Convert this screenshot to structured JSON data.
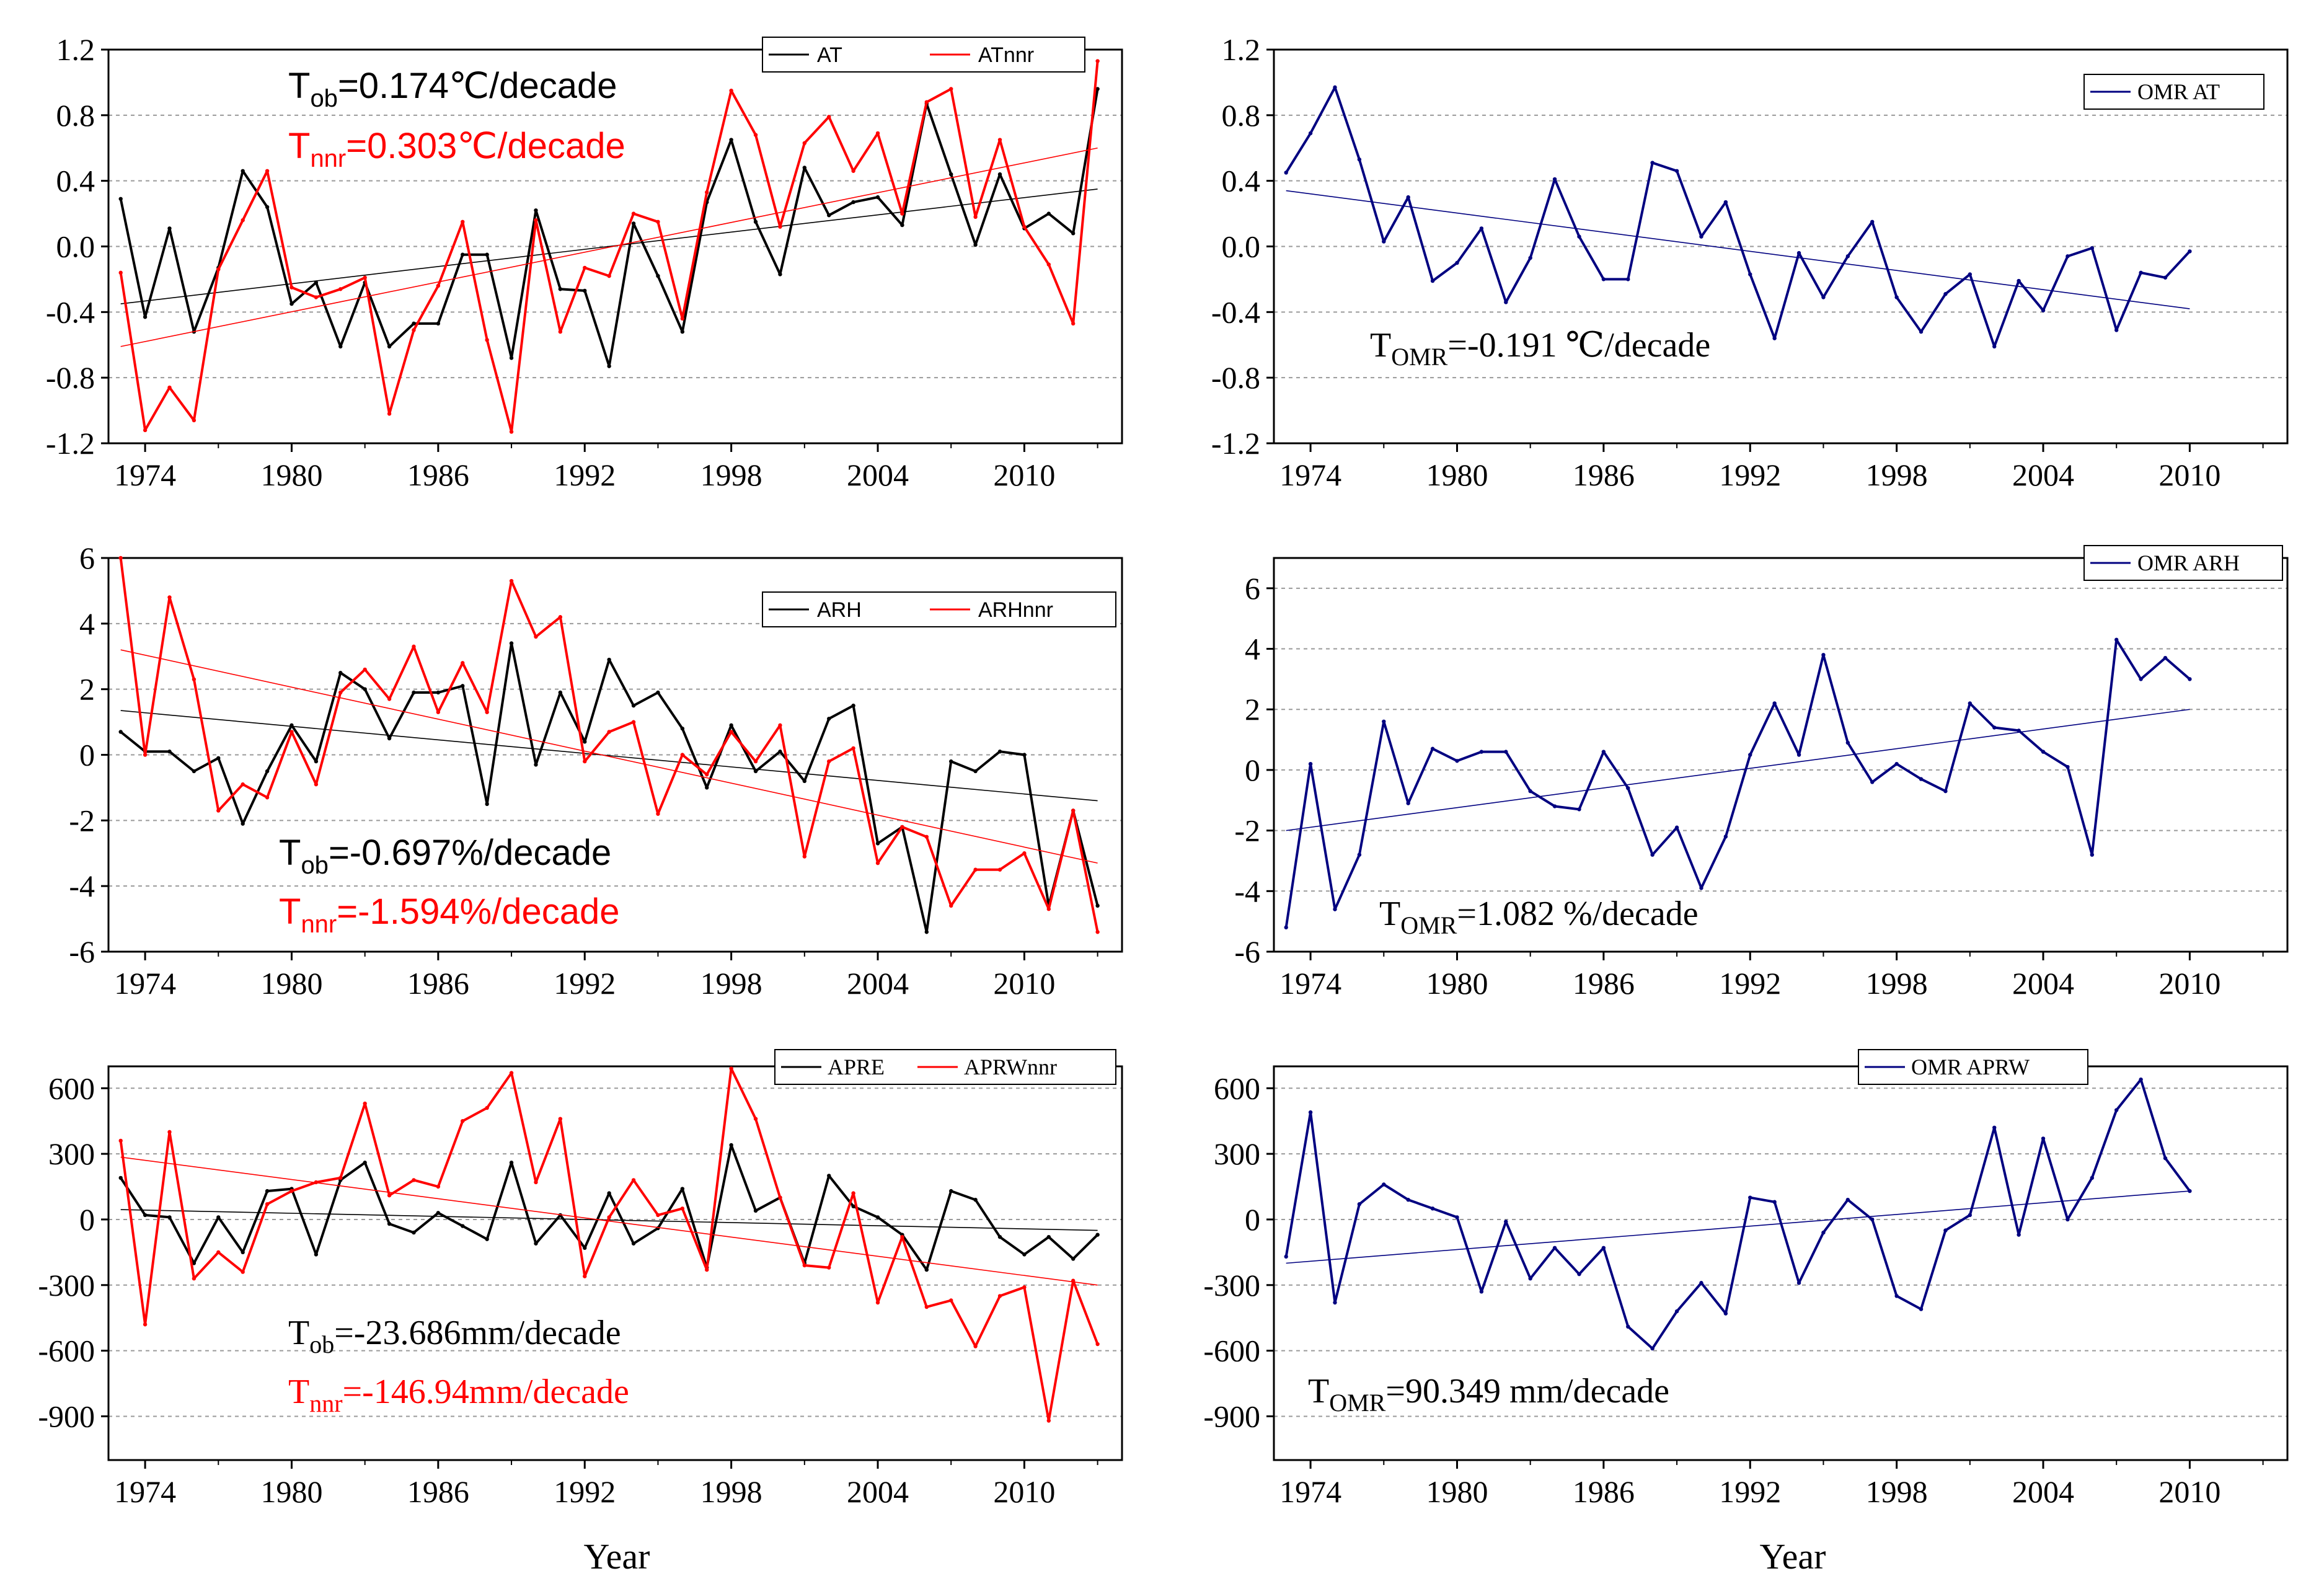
{
  "colors": {
    "ob": "#000000",
    "nnr": "#ff0000",
    "omr": "#000080",
    "grid": "#9a9a9a"
  },
  "x_label": "Year",
  "chart_data": [
    {
      "id": "at",
      "type": "line",
      "x": [
        1973,
        1974,
        1975,
        1976,
        1977,
        1978,
        1979,
        1980,
        1981,
        1982,
        1983,
        1984,
        1985,
        1986,
        1987,
        1988,
        1989,
        1990,
        1991,
        1992,
        1993,
        1994,
        1995,
        1996,
        1997,
        1998,
        1999,
        2000,
        2001,
        2002,
        2003,
        2004,
        2005,
        2006,
        2007,
        2008,
        2009,
        2010,
        2011,
        2012,
        2013
      ],
      "xticks": [
        "1974",
        "1980",
        "1986",
        "1992",
        "1998",
        "2004",
        "2010"
      ],
      "xlim": [
        1972.5,
        2014
      ],
      "yticks": [
        "-1.2",
        "-0.8",
        "-0.4",
        "0.0",
        "0.4",
        "0.8",
        "1.2"
      ],
      "ylim": [
        -1.2,
        1.2
      ],
      "series": [
        {
          "name": "AT",
          "color": "#000000",
          "values": [
            0.29,
            -0.43,
            0.11,
            -0.52,
            -0.13,
            0.46,
            0.24,
            -0.35,
            -0.22,
            -0.61,
            -0.22,
            -0.61,
            -0.47,
            -0.47,
            -0.05,
            -0.05,
            -0.68,
            0.22,
            -0.26,
            -0.27,
            -0.73,
            0.14,
            -0.18,
            -0.52,
            0.27,
            0.65,
            0.15,
            -0.17,
            0.48,
            0.19,
            0.27,
            0.3,
            0.13,
            0.87,
            0.44,
            0.01,
            0.44,
            0.11,
            0.2,
            0.08,
            0.96
          ],
          "trend": [
            -0.35,
            0.35
          ]
        },
        {
          "name": "ATnnr",
          "color": "#ff0000",
          "values": [
            -0.16,
            -1.12,
            -0.86,
            -1.06,
            -0.14,
            0.16,
            0.46,
            -0.25,
            -0.31,
            -0.26,
            -0.19,
            -1.02,
            -0.51,
            -0.24,
            0.15,
            -0.57,
            -1.13,
            0.16,
            -0.52,
            -0.13,
            -0.18,
            0.2,
            0.15,
            -0.44,
            0.33,
            0.95,
            0.68,
            0.12,
            0.63,
            0.79,
            0.46,
            0.69,
            0.2,
            0.88,
            0.96,
            0.18,
            0.65,
            0.12,
            -0.11,
            -0.47,
            1.13
          ],
          "trend": [
            -0.61,
            0.6
          ]
        }
      ],
      "annotations": [
        {
          "main": "T",
          "sub": "ob",
          "rest": "=0.174℃/decade",
          "color": "#000000"
        },
        {
          "main": "T",
          "sub": "nnr",
          "rest": "=0.303℃/decade",
          "color": "#ff0000"
        }
      ]
    },
    {
      "id": "omr_at",
      "type": "line",
      "x": [
        1973,
        1974,
        1975,
        1976,
        1977,
        1978,
        1979,
        1980,
        1981,
        1982,
        1983,
        1984,
        1985,
        1986,
        1987,
        1988,
        1989,
        1990,
        1991,
        1992,
        1993,
        1994,
        1995,
        1996,
        1997,
        1998,
        1999,
        2000,
        2001,
        2002,
        2003,
        2004,
        2005,
        2006,
        2007,
        2008,
        2009,
        2010
      ],
      "xticks": [
        "1974",
        "1980",
        "1986",
        "1992",
        "1998",
        "2004",
        "2010"
      ],
      "xlim": [
        1972.5,
        2014
      ],
      "yticks": [
        "-1.2",
        "-0.8",
        "-0.4",
        "0.0",
        "0.4",
        "0.8",
        "1.2"
      ],
      "ylim": [
        -1.2,
        1.2
      ],
      "series": [
        {
          "name": "OMR AT",
          "color": "#000080",
          "values": [
            0.45,
            0.69,
            0.97,
            0.53,
            0.03,
            0.3,
            -0.21,
            -0.1,
            0.11,
            -0.34,
            -0.07,
            0.41,
            0.06,
            -0.2,
            -0.2,
            0.51,
            0.46,
            0.06,
            0.27,
            -0.17,
            -0.56,
            -0.04,
            -0.31,
            -0.06,
            0.15,
            -0.31,
            -0.52,
            -0.29,
            -0.17,
            -0.61,
            -0.21,
            -0.39,
            -0.06,
            -0.01,
            -0.51,
            -0.16,
            -0.19,
            -0.03
          ],
          "trend": [
            0.34,
            -0.38
          ]
        }
      ],
      "annotations": [
        {
          "main": "T",
          "sub": "OMR",
          "rest": "=-0.191 ℃/decade",
          "color": "#000000"
        }
      ]
    },
    {
      "id": "arh",
      "type": "line",
      "x": [
        1973,
        1974,
        1975,
        1976,
        1977,
        1978,
        1979,
        1980,
        1981,
        1982,
        1983,
        1984,
        1985,
        1986,
        1987,
        1988,
        1989,
        1990,
        1991,
        1992,
        1993,
        1994,
        1995,
        1996,
        1997,
        1998,
        1999,
        2000,
        2001,
        2002,
        2003,
        2004,
        2005,
        2006,
        2007,
        2008,
        2009,
        2010,
        2011,
        2012,
        2013
      ],
      "xticks": [
        "1974",
        "1980",
        "1986",
        "1992",
        "1998",
        "2004",
        "2010"
      ],
      "xlim": [
        1972.5,
        2014
      ],
      "yticks": [
        "-6",
        "-4",
        "-2",
        "0",
        "2",
        "4",
        "6"
      ],
      "ylim": [
        -6,
        6
      ],
      "series": [
        {
          "name": "ARH",
          "color": "#000000",
          "values": [
            0.7,
            0.1,
            0.1,
            -0.5,
            -0.1,
            -2.1,
            -0.5,
            0.9,
            -0.2,
            2.5,
            2.0,
            0.5,
            1.9,
            1.9,
            2.1,
            -1.5,
            3.4,
            -0.3,
            1.9,
            0.4,
            2.9,
            1.5,
            1.9,
            0.8,
            -1.0,
            0.9,
            -0.5,
            0.1,
            -0.8,
            1.1,
            1.5,
            -2.7,
            -2.2,
            -5.4,
            -0.2,
            -0.5,
            0.1,
            0.0,
            -4.6,
            -1.7,
            -4.6
          ],
          "trend": [
            1.35,
            -1.4
          ]
        },
        {
          "name": "ARHnnr",
          "color": "#ff0000",
          "values": [
            6.0,
            0.0,
            4.8,
            2.3,
            -1.7,
            -0.9,
            -1.3,
            0.7,
            -0.9,
            1.9,
            2.6,
            1.7,
            3.3,
            1.3,
            2.8,
            1.3,
            5.3,
            3.6,
            4.2,
            -0.2,
            0.7,
            1.0,
            -1.8,
            0.0,
            -0.6,
            0.7,
            -0.2,
            0.9,
            -3.1,
            -0.2,
            0.2,
            -3.3,
            -2.2,
            -2.5,
            -4.6,
            -3.5,
            -3.5,
            -3.0,
            -4.7,
            -1.7,
            -5.4
          ],
          "trend": [
            3.2,
            -3.3
          ]
        }
      ],
      "annotations": [
        {
          "main": "T",
          "sub": "ob",
          "rest": "=-0.697%/decade",
          "color": "#000000"
        },
        {
          "main": "T",
          "sub": "nnr",
          "rest": "=-1.594%/decade",
          "color": "#ff0000"
        }
      ]
    },
    {
      "id": "omr_arh",
      "type": "line",
      "x": [
        1973,
        1974,
        1975,
        1976,
        1977,
        1978,
        1979,
        1980,
        1981,
        1982,
        1983,
        1984,
        1985,
        1986,
        1987,
        1988,
        1989,
        1990,
        1991,
        1992,
        1993,
        1994,
        1995,
        1996,
        1997,
        1998,
        1999,
        2000,
        2001,
        2002,
        2003,
        2004,
        2005,
        2006,
        2007,
        2008,
        2009,
        2010
      ],
      "xticks": [
        "1974",
        "1980",
        "1986",
        "1992",
        "1998",
        "2004",
        "2010"
      ],
      "xlim": [
        1972.5,
        2014
      ],
      "yticks": [
        "-6",
        "-4",
        "-2",
        "0",
        "2",
        "4",
        "6"
      ],
      "ylim": [
        -6,
        7
      ],
      "series": [
        {
          "name": "OMR ARH",
          "color": "#000080",
          "values": [
            -5.2,
            0.2,
            -4.6,
            -2.8,
            1.6,
            -1.1,
            0.7,
            0.3,
            0.6,
            0.6,
            -0.7,
            -1.2,
            -1.3,
            0.6,
            -0.6,
            -2.8,
            -1.9,
            -3.9,
            -2.2,
            0.5,
            2.2,
            0.5,
            3.8,
            0.9,
            -0.4,
            0.2,
            -0.3,
            -0.7,
            2.2,
            1.4,
            1.3,
            0.6,
            0.1,
            -2.8,
            4.3,
            3.0,
            3.7,
            3.0
          ],
          "trend": [
            -2.0,
            2.0
          ]
        }
      ],
      "annotations": [
        {
          "main": "T",
          "sub": "OMR",
          "rest": "=1.082 %/decade",
          "color": "#000000"
        }
      ]
    },
    {
      "id": "apre",
      "type": "line",
      "x": [
        1973,
        1974,
        1975,
        1976,
        1977,
        1978,
        1979,
        1980,
        1981,
        1982,
        1983,
        1984,
        1985,
        1986,
        1987,
        1988,
        1989,
        1990,
        1991,
        1992,
        1993,
        1994,
        1995,
        1996,
        1997,
        1998,
        1999,
        2000,
        2001,
        2002,
        2003,
        2004,
        2005,
        2006,
        2007,
        2008,
        2009,
        2010,
        2011,
        2012,
        2013
      ],
      "xticks": [
        "1974",
        "1980",
        "1986",
        "1992",
        "1998",
        "2004",
        "2010"
      ],
      "xlim": [
        1972.5,
        2014
      ],
      "yticks": [
        "-900",
        "-600",
        "-300",
        "0",
        "300",
        "600"
      ],
      "ylim": [
        -1100,
        700
      ],
      "series": [
        {
          "name": "APRE",
          "color": "#000000",
          "values": [
            190,
            20,
            10,
            -200,
            10,
            -150,
            130,
            140,
            -160,
            180,
            260,
            -20,
            -60,
            30,
            -30,
            -90,
            260,
            -110,
            20,
            -130,
            120,
            -110,
            -40,
            140,
            -220,
            340,
            40,
            100,
            -200,
            200,
            60,
            10,
            -70,
            -230,
            130,
            90,
            -80,
            -160,
            -80,
            -180,
            -70
          ],
          "trend": [
            45,
            -50
          ]
        },
        {
          "name": "APRWnnr",
          "color": "#ff0000",
          "values": [
            360,
            -480,
            400,
            -270,
            -150,
            -240,
            70,
            130,
            170,
            190,
            530,
            110,
            180,
            150,
            450,
            510,
            670,
            170,
            460,
            -260,
            10,
            180,
            20,
            50,
            -230,
            690,
            460,
            100,
            -210,
            -220,
            120,
            -380,
            -80,
            -400,
            -370,
            -580,
            -350,
            -310,
            -920,
            -280,
            -570
          ],
          "trend": [
            285,
            -300
          ]
        }
      ],
      "annotations": [
        {
          "main": "T",
          "sub": "ob",
          "rest": "=-23.686mm/decade",
          "color": "#000000"
        },
        {
          "main": "T",
          "sub": "nnr",
          "rest": "=-146.94mm/decade",
          "color": "#ff0000"
        }
      ]
    },
    {
      "id": "omr_aprw",
      "type": "line",
      "x": [
        1973,
        1974,
        1975,
        1976,
        1977,
        1978,
        1979,
        1980,
        1981,
        1982,
        1983,
        1984,
        1985,
        1986,
        1987,
        1988,
        1989,
        1990,
        1991,
        1992,
        1993,
        1994,
        1995,
        1996,
        1997,
        1998,
        1999,
        2000,
        2001,
        2002,
        2003,
        2004,
        2005,
        2006,
        2007,
        2008,
        2009,
        2010
      ],
      "xticks": [
        "1974",
        "1980",
        "1986",
        "1992",
        "1998",
        "2004",
        "2010"
      ],
      "xlim": [
        1972.5,
        2014
      ],
      "yticks": [
        "-900",
        "-600",
        "-300",
        "0",
        "300",
        "600"
      ],
      "ylim": [
        -1100,
        700
      ],
      "series": [
        {
          "name": "OMR APRW",
          "color": "#000080",
          "values": [
            -170,
            490,
            -380,
            70,
            160,
            90,
            50,
            10,
            -330,
            -10,
            -270,
            -130,
            -250,
            -130,
            -490,
            -590,
            -420,
            -290,
            -430,
            100,
            80,
            -290,
            -60,
            90,
            0,
            -350,
            -410,
            -50,
            20,
            420,
            -70,
            370,
            0,
            190,
            500,
            640,
            280,
            130
          ],
          "trend": [
            -200,
            130
          ]
        }
      ],
      "annotations": [
        {
          "main": "T",
          "sub": "OMR",
          "rest": "=90.349 mm/decade",
          "color": "#000000"
        }
      ]
    }
  ]
}
